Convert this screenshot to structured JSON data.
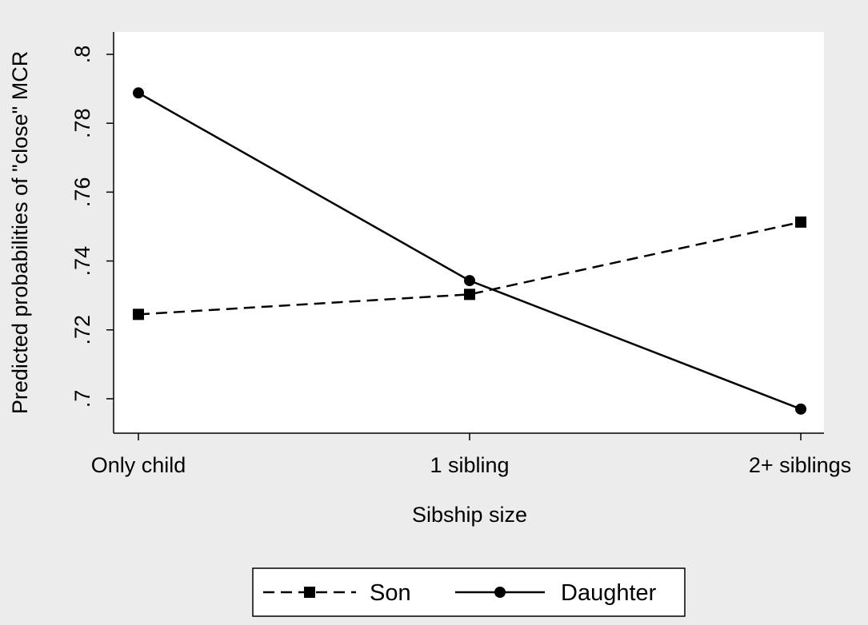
{
  "chart_data": {
    "type": "line",
    "title": "",
    "xlabel": "Sibship size",
    "ylabel": "Predicted probabilities of \"close\" MCR",
    "categories": [
      "Only child",
      "1 sibling",
      "2+ siblings"
    ],
    "yticks": [
      ".7",
      ".72",
      ".74",
      ".76",
      ".78",
      ".8"
    ],
    "ytick_values": [
      0.7,
      0.72,
      0.74,
      0.76,
      0.78,
      0.8
    ],
    "ylim": [
      0.69,
      0.8065
    ],
    "grid": false,
    "legend_position": "bottom",
    "series": [
      {
        "name": "Son",
        "values": [
          0.7245,
          0.7303,
          0.7513
        ],
        "line_style": "dashed",
        "marker": "square",
        "color": "#000000"
      },
      {
        "name": "Daughter",
        "values": [
          0.7888,
          0.7343,
          0.697
        ],
        "line_style": "solid",
        "marker": "circle",
        "color": "#000000"
      }
    ]
  },
  "colors": {
    "background": "#ececec",
    "plot_background": "#ffffff",
    "ink": "#000000"
  }
}
